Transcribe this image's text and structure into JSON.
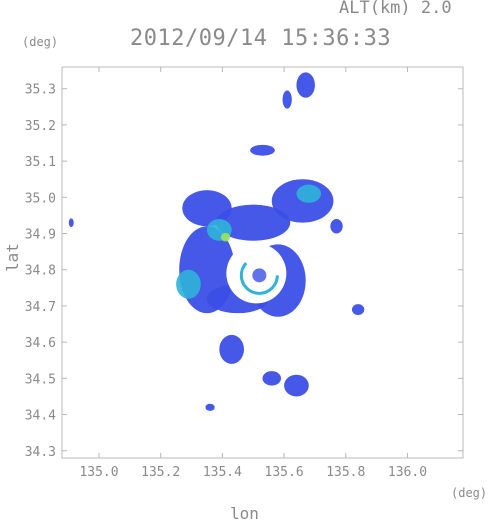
{
  "header": {
    "alt_label": "ALT(km) 2.0",
    "timestamp": "2012/09/14 15:36:33"
  },
  "chart_data": {
    "type": "heatmap",
    "title": "2012/09/14 15:36:33",
    "subtitle": "ALT(km) 2.0",
    "xlabel": "lon",
    "ylabel": "lat",
    "xunit": "(deg)",
    "yunit": "(deg)",
    "xlim": [
      134.88,
      136.18
    ],
    "ylim": [
      34.28,
      35.36
    ],
    "xticks": [
      135.0,
      135.2,
      135.4,
      135.6,
      135.8,
      136.0
    ],
    "xtick_labels": [
      "135.0",
      "135.2",
      "135.4",
      "135.6",
      "135.8",
      "136.0"
    ],
    "yticks": [
      34.3,
      34.4,
      34.5,
      34.6,
      34.7,
      34.8,
      34.9,
      35.0,
      35.1,
      35.2,
      35.3
    ],
    "ytick_labels": [
      "34.3",
      "34.4",
      "34.5",
      "34.6",
      "34.7",
      "34.8",
      "34.9",
      "35.0",
      "35.1",
      "35.2",
      "35.3"
    ],
    "grid": false,
    "colors": {
      "low": "#3b4fe6",
      "mid": "#2fb3d9",
      "high": "#4fd37a",
      "peak": "#9be25a",
      "frame": "#b8b8b8"
    },
    "radar_center": {
      "lon": 135.51,
      "lat": 34.79
    },
    "echo_regions": [
      {
        "lon": 135.35,
        "lat": 34.97,
        "rlon": 0.08,
        "rlat": 0.05,
        "level": "low"
      },
      {
        "lon": 135.66,
        "lat": 34.99,
        "rlon": 0.1,
        "rlat": 0.06,
        "level": "low"
      },
      {
        "lon": 135.5,
        "lat": 34.93,
        "rlon": 0.12,
        "rlat": 0.05,
        "level": "low"
      },
      {
        "lon": 135.35,
        "lat": 34.8,
        "rlon": 0.09,
        "rlat": 0.12,
        "level": "low"
      },
      {
        "lon": 135.58,
        "lat": 34.77,
        "rlon": 0.09,
        "rlat": 0.1,
        "level": "low"
      },
      {
        "lon": 135.45,
        "lat": 34.72,
        "rlon": 0.1,
        "rlat": 0.04,
        "level": "low"
      },
      {
        "lon": 135.39,
        "lat": 34.91,
        "rlon": 0.04,
        "rlat": 0.03,
        "level": "mid"
      },
      {
        "lon": 135.68,
        "lat": 35.01,
        "rlon": 0.04,
        "rlat": 0.025,
        "level": "mid"
      },
      {
        "lon": 135.29,
        "lat": 34.76,
        "rlon": 0.04,
        "rlat": 0.04,
        "level": "mid"
      },
      {
        "lon": 135.41,
        "lat": 34.89,
        "rlon": 0.015,
        "rlat": 0.012,
        "level": "peak"
      },
      {
        "lon": 135.67,
        "lat": 35.31,
        "rlon": 0.03,
        "rlat": 0.035,
        "level": "low"
      },
      {
        "lon": 135.61,
        "lat": 35.27,
        "rlon": 0.015,
        "rlat": 0.025,
        "level": "low"
      },
      {
        "lon": 135.53,
        "lat": 35.13,
        "rlon": 0.04,
        "rlat": 0.015,
        "level": "low"
      },
      {
        "lon": 135.43,
        "lat": 34.58,
        "rlon": 0.04,
        "rlat": 0.04,
        "level": "low"
      },
      {
        "lon": 135.64,
        "lat": 34.48,
        "rlon": 0.04,
        "rlat": 0.03,
        "level": "low"
      },
      {
        "lon": 135.56,
        "lat": 34.5,
        "rlon": 0.03,
        "rlat": 0.02,
        "level": "low"
      },
      {
        "lon": 135.84,
        "lat": 34.69,
        "rlon": 0.02,
        "rlat": 0.015,
        "level": "low"
      },
      {
        "lon": 134.91,
        "lat": 34.93,
        "rlon": 0.008,
        "rlat": 0.012,
        "level": "low"
      },
      {
        "lon": 135.36,
        "lat": 34.42,
        "rlon": 0.015,
        "rlat": 0.01,
        "level": "low"
      },
      {
        "lon": 135.77,
        "lat": 34.92,
        "rlon": 0.02,
        "rlat": 0.02,
        "level": "low"
      }
    ]
  }
}
